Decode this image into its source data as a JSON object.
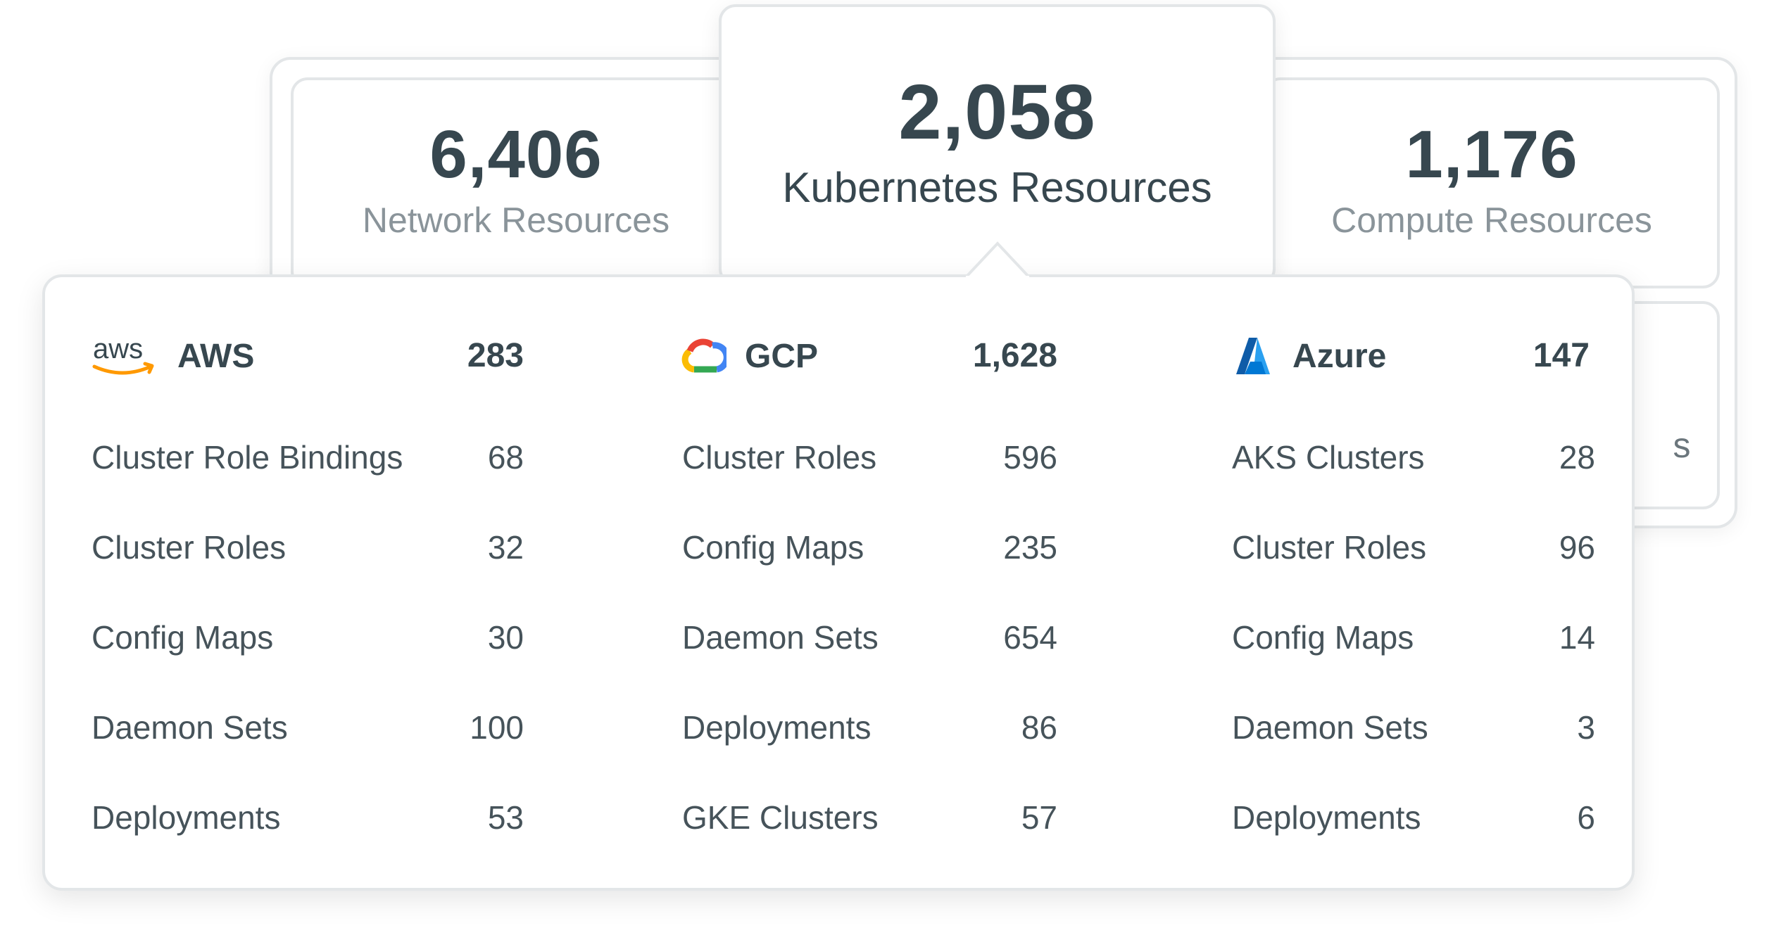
{
  "summary": {
    "network": {
      "count": "6,406",
      "label": "Network Resources"
    },
    "kubernetes": {
      "count": "2,058",
      "label": "Kubernetes Resources"
    },
    "compute": {
      "count": "1,176",
      "label": "Compute Resources"
    },
    "hidden_card_tail": "s"
  },
  "providers": [
    {
      "name": "AWS",
      "icon": "aws-logo-icon",
      "total": "283",
      "items": [
        {
          "label": "Cluster Role Bindings",
          "value": "68"
        },
        {
          "label": "Cluster Roles",
          "value": "32"
        },
        {
          "label": "Config Maps",
          "value": "30"
        },
        {
          "label": "Daemon Sets",
          "value": "100"
        },
        {
          "label": "Deployments",
          "value": "53"
        }
      ]
    },
    {
      "name": "GCP",
      "icon": "gcp-logo-icon",
      "total": "1,628",
      "items": [
        {
          "label": "Cluster Roles",
          "value": "596"
        },
        {
          "label": "Config Maps",
          "value": "235"
        },
        {
          "label": "Daemon Sets",
          "value": "654"
        },
        {
          "label": "Deployments",
          "value": "86"
        },
        {
          "label": "GKE Clusters",
          "value": "57"
        }
      ]
    },
    {
      "name": "Azure",
      "icon": "azure-logo-icon",
      "total": "147",
      "items": [
        {
          "label": "AKS Clusters",
          "value": "28"
        },
        {
          "label": "Cluster Roles",
          "value": "96"
        },
        {
          "label": "Config Maps",
          "value": "14"
        },
        {
          "label": "Daemon Sets",
          "value": "3"
        },
        {
          "label": "Deployments",
          "value": "6"
        }
      ]
    }
  ],
  "colors": {
    "aws_orange": "#ff9900",
    "aws_text": "#37474f",
    "gcp_blue": "#4285f4",
    "gcp_red": "#ea4335",
    "gcp_yellow": "#fbbc04",
    "gcp_green": "#34a853",
    "azure_blue": "#0078d4"
  }
}
